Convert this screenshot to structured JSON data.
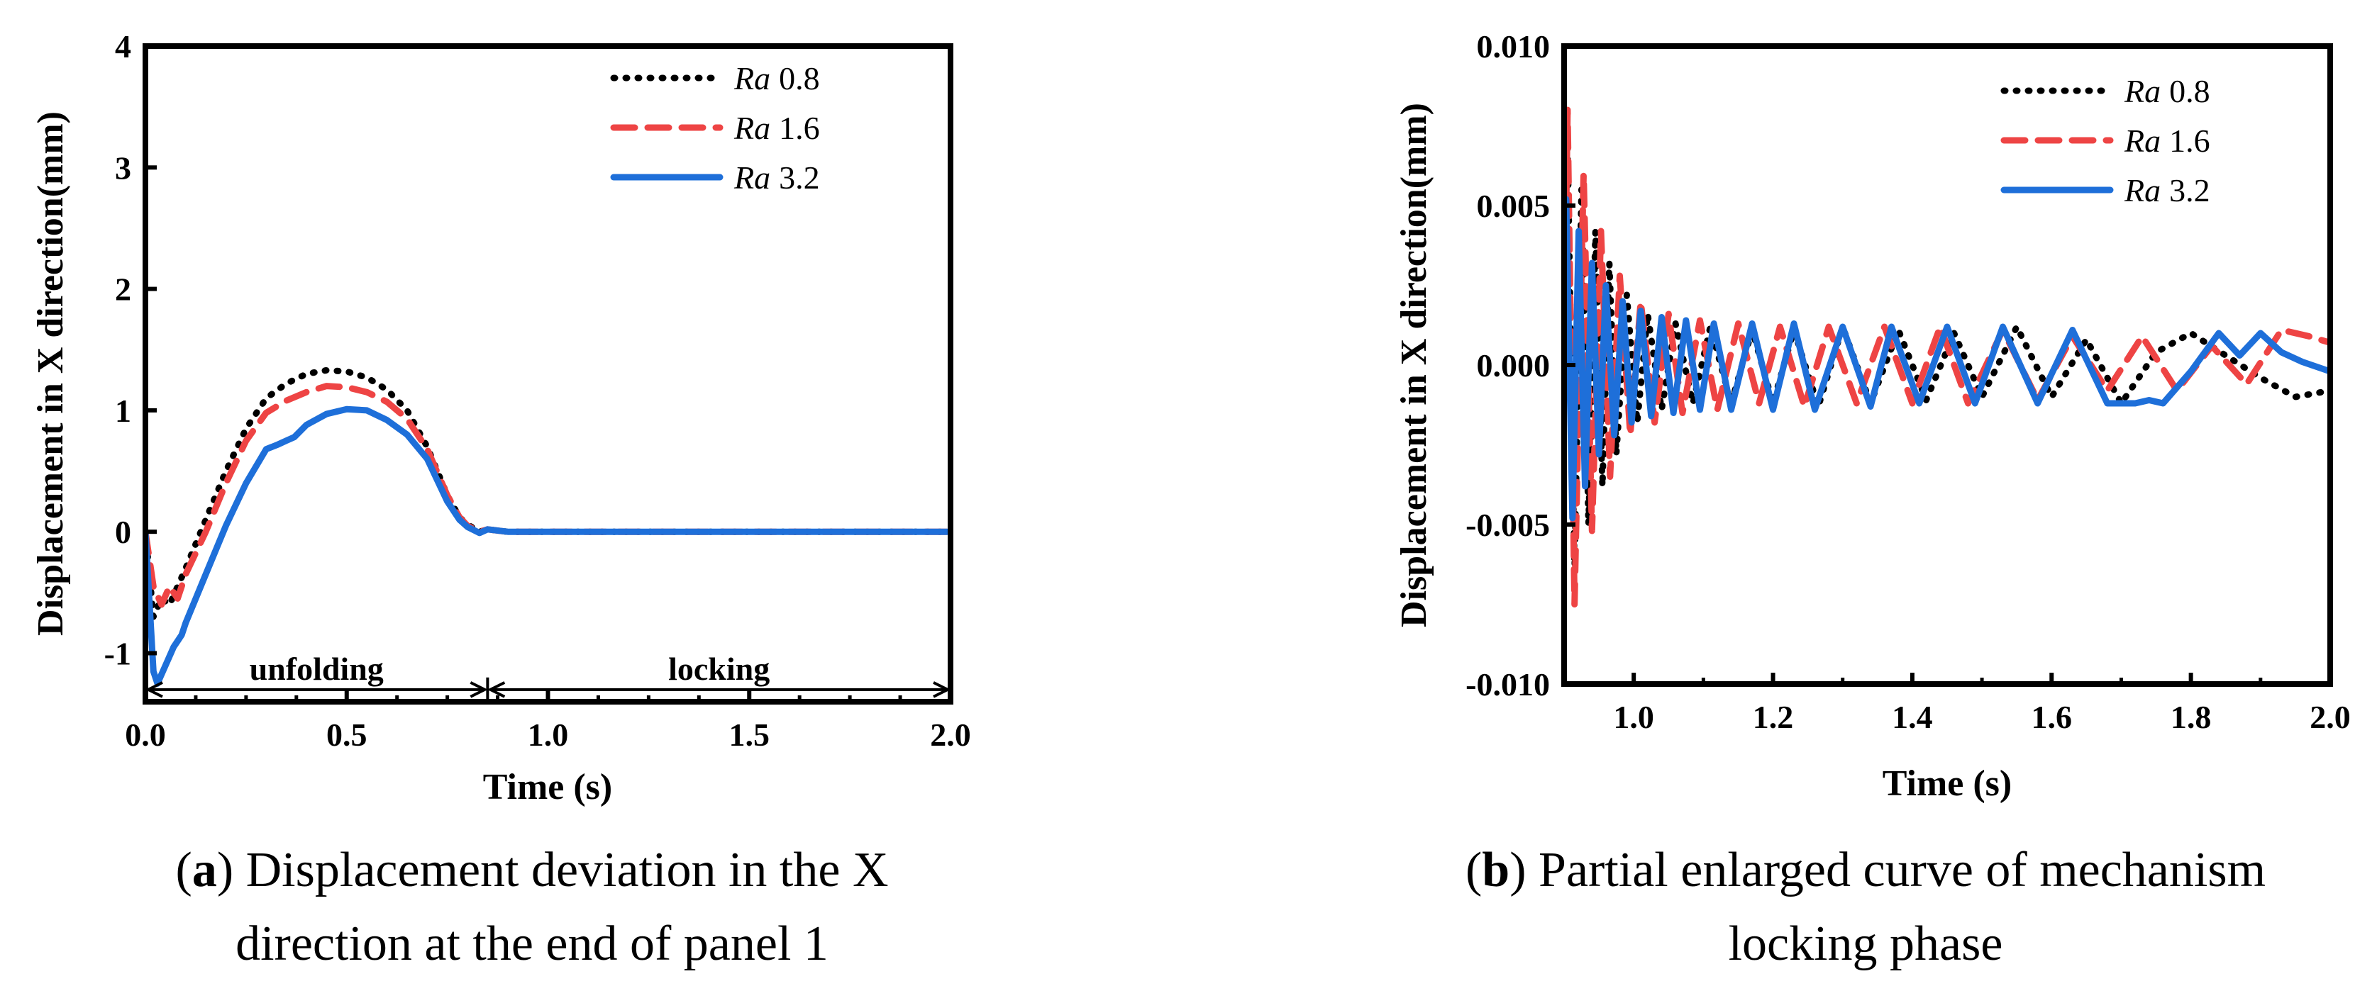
{
  "styles": {
    "Ra 0.8": {
      "color": "#000000",
      "dash": "dot"
    },
    "Ra 1.6": {
      "color": "#EE4444",
      "dash": "dash"
    },
    "Ra 3.2": {
      "color": "#1E6FD9",
      "dash": "solid"
    }
  },
  "chart_data": [
    {
      "type": "line",
      "id": "a",
      "xlabel": "Time (s)",
      "ylabel": "Displacement in X direction(mm)",
      "xlim": [
        0.0,
        2.0
      ],
      "ylim": [
        -1.4,
        4.0
      ],
      "xticks": [
        0.0,
        0.5,
        1.0,
        1.5,
        2.0
      ],
      "xtick_labels": [
        "0.0",
        "0.5",
        "1.0",
        "1.5",
        "2.0"
      ],
      "yticks": [
        -1,
        0,
        1,
        2,
        3,
        4
      ],
      "ytick_labels": [
        "-1",
        "0",
        "1",
        "2",
        "3",
        "4"
      ],
      "legend": {
        "position": "top-right",
        "entries": [
          {
            "prefix": "Ra",
            "value": "0.8"
          },
          {
            "prefix": "Ra",
            "value": "1.6"
          },
          {
            "prefix": "Ra",
            "value": "3.2"
          }
        ]
      },
      "annotations": [
        {
          "text": "unfolding",
          "x_from": 0.0,
          "x_to": 0.85,
          "y": -1.3
        },
        {
          "text": "locking",
          "x_from": 0.85,
          "x_to": 2.0,
          "y": -1.3
        }
      ],
      "series": [
        {
          "name": "Ra 0.8",
          "x": [
            0.0,
            0.02,
            0.04,
            0.06,
            0.08,
            0.1,
            0.15,
            0.2,
            0.25,
            0.3,
            0.35,
            0.4,
            0.45,
            0.5,
            0.55,
            0.6,
            0.65,
            0.7,
            0.75,
            0.78,
            0.8,
            0.83,
            0.85,
            0.9,
            1.0,
            1.5,
            2.0
          ],
          "y": [
            0.0,
            -0.7,
            -0.55,
            -0.6,
            -0.45,
            -0.3,
            0.1,
            0.5,
            0.85,
            1.1,
            1.22,
            1.3,
            1.33,
            1.32,
            1.27,
            1.17,
            1.0,
            0.7,
            0.3,
            0.12,
            0.06,
            0.0,
            0.02,
            0.0,
            0.0,
            0.0,
            0.0
          ]
        },
        {
          "name": "Ra 1.6",
          "x": [
            0.0,
            0.02,
            0.04,
            0.06,
            0.08,
            0.1,
            0.15,
            0.2,
            0.25,
            0.3,
            0.35,
            0.4,
            0.45,
            0.5,
            0.55,
            0.6,
            0.65,
            0.7,
            0.75,
            0.78,
            0.8,
            0.83,
            0.85,
            0.9,
            1.0,
            1.5,
            2.0
          ],
          "y": [
            0.0,
            -0.45,
            -0.6,
            -0.45,
            -0.55,
            -0.35,
            0.0,
            0.4,
            0.75,
            0.98,
            1.08,
            1.15,
            1.2,
            1.19,
            1.15,
            1.07,
            0.93,
            0.68,
            0.3,
            0.12,
            0.05,
            0.0,
            0.02,
            0.0,
            0.0,
            0.0,
            0.0
          ]
        },
        {
          "name": "Ra 3.2",
          "x": [
            0.0,
            0.02,
            0.03,
            0.05,
            0.07,
            0.09,
            0.1,
            0.15,
            0.2,
            0.25,
            0.3,
            0.33,
            0.35,
            0.37,
            0.4,
            0.45,
            0.5,
            0.55,
            0.6,
            0.65,
            0.7,
            0.75,
            0.78,
            0.8,
            0.83,
            0.85,
            0.9,
            1.0,
            1.5,
            2.0
          ],
          "y": [
            0.0,
            -1.15,
            -1.25,
            -1.1,
            -0.95,
            -0.85,
            -0.75,
            -0.35,
            0.05,
            0.4,
            0.68,
            0.72,
            0.75,
            0.78,
            0.88,
            0.97,
            1.01,
            1.0,
            0.92,
            0.8,
            0.6,
            0.25,
            0.1,
            0.04,
            -0.01,
            0.02,
            0.0,
            0.0,
            0.0,
            0.0
          ]
        }
      ]
    },
    {
      "type": "line",
      "id": "b",
      "xlabel": "Time (s)",
      "ylabel": "Displacement in X direction(mm)",
      "xlim": [
        0.9,
        2.0
      ],
      "ylim": [
        -0.01,
        0.01
      ],
      "xticks": [
        1.0,
        1.2,
        1.4,
        1.6,
        1.8,
        2.0
      ],
      "xtick_labels": [
        "1.0",
        "1.2",
        "1.4",
        "1.6",
        "1.8",
        "2.0"
      ],
      "yticks": [
        -0.01,
        -0.005,
        0.0,
        0.005,
        0.01
      ],
      "ytick_labels": [
        "-0.010",
        "-0.005",
        "0.000",
        "0.005",
        "0.010"
      ],
      "legend": {
        "position": "top-right",
        "entries": [
          {
            "prefix": "Ra",
            "value": "0.8"
          },
          {
            "prefix": "Ra",
            "value": "1.6"
          },
          {
            "prefix": "Ra",
            "value": "3.2"
          }
        ]
      },
      "series": [
        {
          "name": "Ra 0.8",
          "x": [
            0.9,
            0.905,
            0.915,
            0.925,
            0.935,
            0.945,
            0.955,
            0.965,
            0.975,
            0.99,
            1.005,
            1.02,
            1.04,
            1.06,
            1.085,
            1.11,
            1.14,
            1.17,
            1.2,
            1.23,
            1.265,
            1.3,
            1.34,
            1.38,
            1.42,
            1.46,
            1.5,
            1.55,
            1.6,
            1.65,
            1.7,
            1.75,
            1.8,
            1.85,
            1.9,
            1.95,
            2.0
          ],
          "y": [
            0.0,
            0.007,
            -0.0065,
            0.0055,
            -0.005,
            0.0042,
            -0.0038,
            0.0032,
            -0.0028,
            0.0022,
            -0.0018,
            0.0016,
            -0.0014,
            0.0013,
            -0.0012,
            0.0012,
            -0.0012,
            0.0011,
            -0.0012,
            0.0011,
            -0.0013,
            0.0012,
            -0.0012,
            0.0011,
            -0.0011,
            0.001,
            -0.001,
            0.0012,
            -0.001,
            0.0008,
            -0.0012,
            0.0004,
            0.001,
            0.0003,
            -0.0004,
            -0.001,
            -0.0008
          ]
        },
        {
          "name": "Ra 1.6",
          "x": [
            0.9,
            0.905,
            0.915,
            0.928,
            0.94,
            0.953,
            0.966,
            0.98,
            0.995,
            1.01,
            1.03,
            1.05,
            1.07,
            1.095,
            1.12,
            1.15,
            1.18,
            1.21,
            1.245,
            1.28,
            1.32,
            1.36,
            1.4,
            1.44,
            1.48,
            1.53,
            1.58,
            1.63,
            1.68,
            1.73,
            1.78,
            1.83,
            1.88,
            1.93,
            1.97,
            2.0
          ],
          "y": [
            0.0,
            0.008,
            -0.0075,
            0.006,
            -0.0052,
            0.0042,
            -0.0035,
            0.0028,
            -0.0022,
            0.002,
            -0.0018,
            0.0016,
            -0.0015,
            0.0014,
            -0.0014,
            0.0013,
            -0.0012,
            0.0012,
            -0.0013,
            0.0012,
            -0.0012,
            0.0012,
            -0.0012,
            0.0012,
            -0.0012,
            0.0011,
            -0.0011,
            0.0009,
            -0.0008,
            0.0009,
            -0.0008,
            0.0006,
            -0.0006,
            0.0011,
            0.0009,
            0.0007
          ]
        },
        {
          "name": "Ra 3.2",
          "x": [
            0.9,
            0.903,
            0.912,
            0.921,
            0.93,
            0.94,
            0.95,
            0.96,
            0.972,
            0.984,
            0.997,
            1.01,
            1.025,
            1.04,
            1.057,
            1.075,
            1.095,
            1.115,
            1.14,
            1.17,
            1.2,
            1.23,
            1.26,
            1.3,
            1.34,
            1.37,
            1.41,
            1.45,
            1.49,
            1.53,
            1.58,
            1.63,
            1.68,
            1.72,
            1.74,
            1.76,
            1.8,
            1.84,
            1.87,
            1.9,
            1.93,
            1.96,
            2.0
          ],
          "y": [
            0.0,
            0.0052,
            -0.0048,
            0.0042,
            -0.0038,
            0.0032,
            -0.0028,
            0.0025,
            -0.0022,
            0.002,
            -0.0018,
            0.0017,
            -0.0016,
            0.0015,
            -0.0015,
            0.0014,
            -0.0014,
            0.0013,
            -0.0014,
            0.0013,
            -0.0014,
            0.0013,
            -0.0014,
            0.0012,
            -0.0013,
            0.0012,
            -0.0012,
            0.0012,
            -0.0012,
            0.0012,
            -0.0012,
            0.0011,
            -0.0012,
            -0.0012,
            -0.0011,
            -0.0012,
            -0.0002,
            0.001,
            0.0003,
            0.001,
            0.0004,
            0.0001,
            -0.0002
          ]
        }
      ]
    }
  ],
  "captions": [
    {
      "letter": "a",
      "lines": [
        "Displacement deviation in the X",
        "direction at the end of panel 1"
      ]
    },
    {
      "letter": "b",
      "lines": [
        "Partial enlarged curve of mechanism",
        "locking phase"
      ]
    }
  ]
}
